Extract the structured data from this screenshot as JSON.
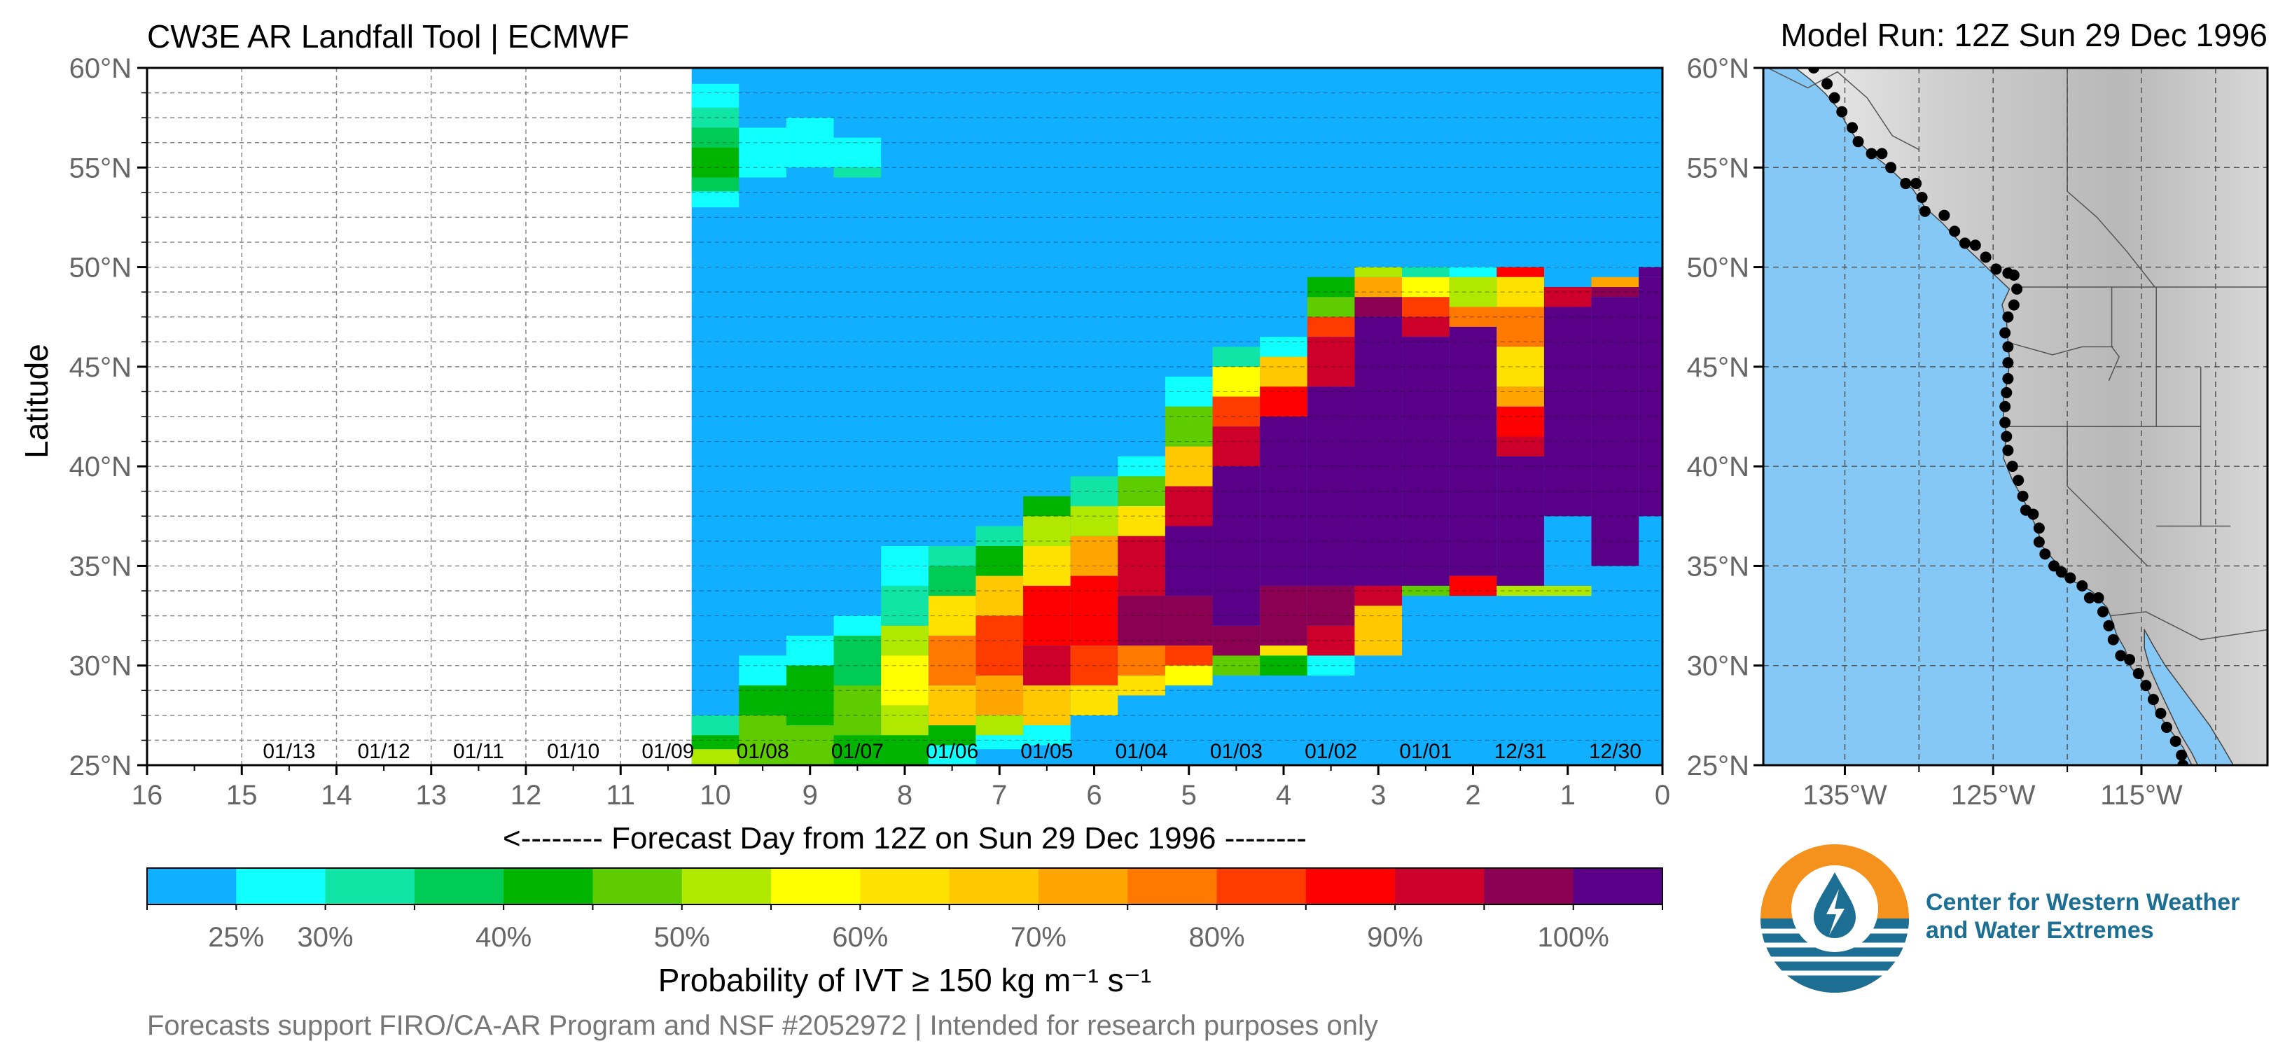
{
  "header": {
    "title": "CW3E AR Landfall Tool | ECMWF",
    "model_run": "Model Run: 12Z Sun 29 Dec 1996"
  },
  "chart_data": [
    {
      "type": "heatmap",
      "title": "CW3E AR Landfall Tool | ECMWF",
      "xlabel": "<-------- Forecast Day from 12Z on Sun 29 Dec 1996 --------",
      "ylabel": "Latitude",
      "x_ticks": [
        "16",
        "15",
        "14",
        "13",
        "12",
        "11",
        "10",
        "9",
        "8",
        "7",
        "6",
        "5",
        "4",
        "3",
        "2",
        "1",
        "0"
      ],
      "xlim": [
        16,
        0
      ],
      "ylim": [
        25,
        60
      ],
      "y_ticks": [
        "25°N",
        "30°N",
        "35°N",
        "40°N",
        "45°N",
        "50°N",
        "55°N",
        "60°N"
      ],
      "date_labels": [
        "01/13",
        "01/12",
        "01/11",
        "01/10",
        "01/09",
        "01/08",
        "01/07",
        "01/06",
        "01/05",
        "01/04",
        "01/03",
        "01/02",
        "01/01",
        "12/31",
        "12/30"
      ],
      "forecast_range_days": [
        0,
        10.25
      ],
      "background_value_pct": "<25%",
      "colorbar": {
        "label": "Probability of IVT ≥ 150 kg m⁻¹ s⁻¹",
        "colors": [
          "#10afff",
          "#10ffff",
          "#10e5a5",
          "#00cc55",
          "#00b400",
          "#5fcc00",
          "#b0e800",
          "#ffff00",
          "#ffe100",
          "#ffc800",
          "#ffa500",
          "#ff7800",
          "#ff3c00",
          "#ff0000",
          "#cc002a",
          "#8b0052",
          "#5a0088"
        ],
        "ticks": [
          "25%",
          "30%",
          "40%",
          "50%",
          "60%",
          "70%",
          "80%",
          "90%",
          "100%"
        ]
      }
    },
    {
      "type": "map",
      "x_ticks": [
        "135°W",
        "125°W",
        "115°W"
      ],
      "y_ticks": [
        "25°N",
        "30°N",
        "35°N",
        "40°N",
        "45°N",
        "50°N",
        "55°N",
        "60°N"
      ],
      "landfall_points": [
        [
          -137.1,
          60.0
        ],
        [
          -136.2,
          59.2
        ],
        [
          -135.7,
          58.5
        ],
        [
          -135.2,
          57.8
        ],
        [
          -134.5,
          57.0
        ],
        [
          -134.1,
          56.3
        ],
        [
          -133.2,
          55.7
        ],
        [
          -132.5,
          55.7
        ],
        [
          -131.9,
          55.0
        ],
        [
          -130.9,
          54.2
        ],
        [
          -130.2,
          54.2
        ],
        [
          -129.8,
          53.5
        ],
        [
          -129.6,
          52.8
        ],
        [
          -128.3,
          52.6
        ],
        [
          -127.6,
          51.8
        ],
        [
          -126.9,
          51.2
        ],
        [
          -126.2,
          51.1
        ],
        [
          -125.5,
          50.5
        ],
        [
          -124.8,
          49.9
        ],
        [
          -124.0,
          49.7
        ],
        [
          -123.6,
          49.6
        ],
        [
          -123.4,
          48.9
        ],
        [
          -123.6,
          48.1
        ],
        [
          -124.0,
          47.5
        ],
        [
          -124.2,
          46.7
        ],
        [
          -124.0,
          46.0
        ],
        [
          -124.0,
          45.2
        ],
        [
          -124.0,
          44.4
        ],
        [
          -124.1,
          43.7
        ],
        [
          -124.2,
          43.0
        ],
        [
          -124.2,
          42.2
        ],
        [
          -124.1,
          41.5
        ],
        [
          -124.0,
          40.8
        ],
        [
          -123.7,
          40.0
        ],
        [
          -123.3,
          39.3
        ],
        [
          -123.0,
          38.5
        ],
        [
          -122.8,
          37.8
        ],
        [
          -122.3,
          37.6
        ],
        [
          -121.9,
          36.9
        ],
        [
          -121.9,
          36.2
        ],
        [
          -121.5,
          35.6
        ],
        [
          -120.9,
          35.0
        ],
        [
          -120.4,
          34.7
        ],
        [
          -119.8,
          34.4
        ],
        [
          -119.0,
          34.0
        ],
        [
          -118.5,
          33.4
        ],
        [
          -117.9,
          33.4
        ],
        [
          -117.6,
          32.7
        ],
        [
          -117.2,
          32.0
        ],
        [
          -116.9,
          31.3
        ],
        [
          -116.4,
          30.5
        ],
        [
          -115.8,
          30.3
        ],
        [
          -115.2,
          29.6
        ],
        [
          -114.7,
          29.0
        ],
        [
          -114.2,
          28.3
        ],
        [
          -113.7,
          27.6
        ],
        [
          -113.3,
          26.9
        ],
        [
          -112.7,
          26.2
        ],
        [
          -112.3,
          25.5
        ],
        [
          -112.2,
          25.0
        ]
      ]
    }
  ],
  "footer": {
    "note": "Forecasts support FIRO/CA-AR Program and NSF #2052972 | Intended for research purposes only",
    "logo_text_line1": "Center for Western Weather",
    "logo_text_line2": "and Water Extremes"
  },
  "colors": {
    "ocean": "#86c8f5",
    "logo_orange": "#f5921e",
    "logo_blue": "#1d6e93"
  }
}
